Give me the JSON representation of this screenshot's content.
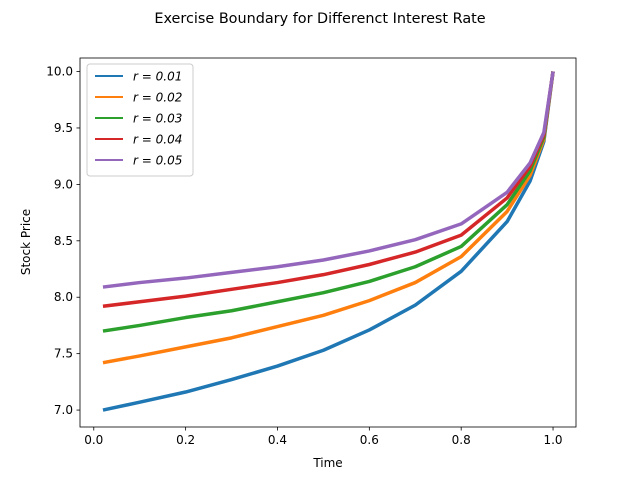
{
  "chart_data": {
    "type": "line",
    "title": "Exercise Boundary for Differenct Interest Rate",
    "xlabel": "Time",
    "ylabel": "Stock Price",
    "xlim": [
      -0.03,
      1.05
    ],
    "ylim": [
      6.85,
      10.12
    ],
    "xticks": [
      0.0,
      0.2,
      0.4,
      0.6,
      0.8,
      1.0
    ],
    "xtick_labels": [
      "0.0",
      "0.2",
      "0.4",
      "0.6",
      "0.8",
      "1.0"
    ],
    "yticks": [
      7.0,
      7.5,
      8.0,
      8.5,
      9.0,
      9.5,
      10.0
    ],
    "ytick_labels": [
      "7.0",
      "7.5",
      "8.0",
      "8.5",
      "9.0",
      "9.5",
      "10.0"
    ],
    "grid": false,
    "legend_position": "top-left",
    "x": [
      0.02,
      0.1,
      0.2,
      0.3,
      0.4,
      0.5,
      0.6,
      0.7,
      0.8,
      0.9,
      0.95,
      0.98,
      1.0
    ],
    "series": [
      {
        "name": "r = 0.01",
        "color": "#1f77b4",
        "values": [
          7.0,
          7.07,
          7.16,
          7.27,
          7.39,
          7.53,
          7.71,
          7.93,
          8.23,
          8.67,
          9.03,
          9.38,
          10.0
        ]
      },
      {
        "name": "r = 0.02",
        "color": "#ff7f0e",
        "values": [
          7.42,
          7.48,
          7.56,
          7.64,
          7.74,
          7.84,
          7.97,
          8.13,
          8.36,
          8.76,
          9.08,
          9.4,
          10.0
        ]
      },
      {
        "name": "r = 0.03",
        "color": "#2ca02c",
        "values": [
          7.7,
          7.75,
          7.82,
          7.88,
          7.96,
          8.04,
          8.14,
          8.27,
          8.45,
          8.82,
          9.12,
          9.42,
          10.0
        ]
      },
      {
        "name": "r = 0.04",
        "color": "#d62728",
        "values": [
          7.92,
          7.96,
          8.01,
          8.07,
          8.13,
          8.2,
          8.29,
          8.4,
          8.55,
          8.88,
          9.16,
          9.44,
          10.0
        ]
      },
      {
        "name": "r = 0.05",
        "color": "#9467bd",
        "values": [
          8.09,
          8.13,
          8.17,
          8.22,
          8.27,
          8.33,
          8.41,
          8.51,
          8.65,
          8.93,
          9.19,
          9.46,
          10.0
        ]
      }
    ]
  }
}
